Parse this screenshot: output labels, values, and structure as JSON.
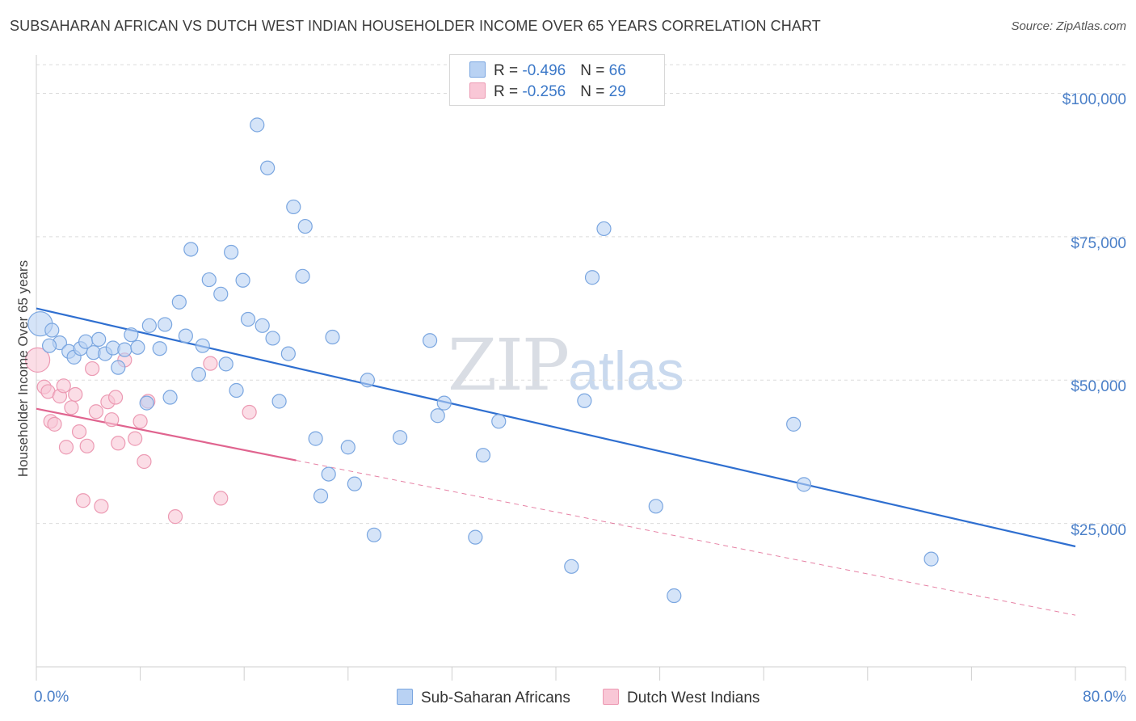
{
  "header": {
    "title": "SUBSAHARAN AFRICAN VS DUTCH WEST INDIAN HOUSEHOLDER INCOME OVER 65 YEARS CORRELATION CHART",
    "source": "Source: ZipAtlas.com"
  },
  "watermark": {
    "zip": "ZIP",
    "atlas": "atlas"
  },
  "legend_top": {
    "rows": [
      {
        "r_label": "R = ",
        "r_value": "-0.496",
        "n_label": "N = ",
        "n_value": "66"
      },
      {
        "r_label": "R = ",
        "r_value": "-0.256",
        "n_label": "N = ",
        "n_value": "29"
      }
    ]
  },
  "legend_bottom": {
    "series1": "Sub-Saharan Africans",
    "series2": "Dutch West Indians"
  },
  "colors": {
    "series1_fill": "#b9d2f3",
    "series1_stroke": "#7aa6e0",
    "series1_line": "#2f6fd0",
    "series2_fill": "#f9c7d6",
    "series2_stroke": "#ec9ab3",
    "series2_line": "#e0648f",
    "grid": "#dcdcdc",
    "axis_text": "#4a7fc8"
  },
  "chart_data": {
    "type": "scatter",
    "title": "SUBSAHARAN AFRICAN VS DUTCH WEST INDIAN HOUSEHOLDER INCOME OVER 65 YEARS CORRELATION CHART",
    "xlabel": "",
    "ylabel": "Householder Income Over 65 years",
    "xlim": [
      0,
      80
    ],
    "ylim": [
      0,
      105000
    ],
    "x_tick_labels": [
      "0.0%",
      "80.0%"
    ],
    "y_ticks": [
      {
        "value": 25000,
        "label": "$25,000"
      },
      {
        "value": 50000,
        "label": "$50,000"
      },
      {
        "value": 75000,
        "label": "$75,000"
      },
      {
        "value": 100000,
        "label": "$100,000"
      }
    ],
    "series": [
      {
        "name": "Sub-Saharan Africans",
        "R": -0.496,
        "N": 66,
        "trend": {
          "x": [
            0,
            80
          ],
          "y": [
            62500,
            21000
          ]
        },
        "points": [
          {
            "x": 0.3,
            "y": 59800,
            "big": true
          },
          {
            "x": 1.2,
            "y": 58700
          },
          {
            "x": 1.8,
            "y": 56500
          },
          {
            "x": 2.5,
            "y": 55000
          },
          {
            "x": 2.9,
            "y": 54000
          },
          {
            "x": 3.4,
            "y": 55500
          },
          {
            "x": 3.8,
            "y": 56700
          },
          {
            "x": 4.4,
            "y": 54800
          },
          {
            "x": 4.8,
            "y": 57100
          },
          {
            "x": 5.3,
            "y": 54600
          },
          {
            "x": 5.9,
            "y": 55600
          },
          {
            "x": 6.3,
            "y": 52200
          },
          {
            "x": 6.8,
            "y": 55300
          },
          {
            "x": 7.3,
            "y": 57900
          },
          {
            "x": 7.8,
            "y": 55700
          },
          {
            "x": 8.5,
            "y": 46000
          },
          {
            "x": 8.7,
            "y": 59500
          },
          {
            "x": 9.5,
            "y": 55500
          },
          {
            "x": 9.9,
            "y": 59700
          },
          {
            "x": 10.3,
            "y": 47000
          },
          {
            "x": 11.0,
            "y": 63600
          },
          {
            "x": 11.5,
            "y": 57700
          },
          {
            "x": 11.9,
            "y": 72800
          },
          {
            "x": 12.5,
            "y": 51000
          },
          {
            "x": 12.8,
            "y": 56000
          },
          {
            "x": 13.3,
            "y": 67500
          },
          {
            "x": 14.2,
            "y": 65000
          },
          {
            "x": 14.6,
            "y": 52800
          },
          {
            "x": 15.0,
            "y": 72300
          },
          {
            "x": 15.4,
            "y": 48200
          },
          {
            "x": 15.9,
            "y": 67400
          },
          {
            "x": 16.3,
            "y": 60600
          },
          {
            "x": 17.0,
            "y": 94500
          },
          {
            "x": 17.4,
            "y": 59500
          },
          {
            "x": 17.8,
            "y": 87000
          },
          {
            "x": 18.2,
            "y": 57300
          },
          {
            "x": 18.7,
            "y": 46300
          },
          {
            "x": 19.4,
            "y": 54600
          },
          {
            "x": 19.8,
            "y": 80200
          },
          {
            "x": 20.5,
            "y": 68100
          },
          {
            "x": 20.7,
            "y": 76800
          },
          {
            "x": 21.5,
            "y": 39800
          },
          {
            "x": 21.9,
            "y": 29800
          },
          {
            "x": 22.5,
            "y": 33600
          },
          {
            "x": 22.8,
            "y": 57500
          },
          {
            "x": 24.0,
            "y": 38300
          },
          {
            "x": 24.5,
            "y": 31900
          },
          {
            "x": 25.5,
            "y": 50000
          },
          {
            "x": 26.0,
            "y": 23000
          },
          {
            "x": 28.0,
            "y": 40000
          },
          {
            "x": 30.3,
            "y": 56900
          },
          {
            "x": 30.9,
            "y": 43800
          },
          {
            "x": 31.4,
            "y": 46000
          },
          {
            "x": 33.8,
            "y": 22600
          },
          {
            "x": 34.4,
            "y": 36900
          },
          {
            "x": 35.6,
            "y": 42800
          },
          {
            "x": 41.2,
            "y": 17500
          },
          {
            "x": 42.2,
            "y": 46400
          },
          {
            "x": 42.8,
            "y": 67900
          },
          {
            "x": 43.7,
            "y": 76400
          },
          {
            "x": 47.7,
            "y": 28000
          },
          {
            "x": 49.1,
            "y": 12400
          },
          {
            "x": 58.3,
            "y": 42300
          },
          {
            "x": 59.1,
            "y": 31800
          },
          {
            "x": 68.9,
            "y": 18800
          },
          {
            "x": 1.0,
            "y": 56000
          }
        ]
      },
      {
        "name": "Dutch West Indians",
        "R": -0.256,
        "N": 29,
        "trend": {
          "x": [
            0,
            20
          ],
          "y": [
            45000,
            36000
          ]
        },
        "trend_ext": {
          "x": [
            20,
            80
          ],
          "y": [
            36000,
            9000
          ]
        },
        "points": [
          {
            "x": 0.1,
            "y": 53500,
            "big": true
          },
          {
            "x": 0.6,
            "y": 48800
          },
          {
            "x": 0.9,
            "y": 48000
          },
          {
            "x": 1.1,
            "y": 42800
          },
          {
            "x": 1.4,
            "y": 42300
          },
          {
            "x": 1.8,
            "y": 47200
          },
          {
            "x": 2.1,
            "y": 49000
          },
          {
            "x": 2.3,
            "y": 38300
          },
          {
            "x": 2.7,
            "y": 45200
          },
          {
            "x": 3.0,
            "y": 47500
          },
          {
            "x": 3.3,
            "y": 41000
          },
          {
            "x": 3.6,
            "y": 29000
          },
          {
            "x": 3.9,
            "y": 38500
          },
          {
            "x": 4.3,
            "y": 52000
          },
          {
            "x": 4.6,
            "y": 44500
          },
          {
            "x": 5.0,
            "y": 28000
          },
          {
            "x": 5.5,
            "y": 46200
          },
          {
            "x": 5.8,
            "y": 43100
          },
          {
            "x": 6.1,
            "y": 47000
          },
          {
            "x": 6.3,
            "y": 39000
          },
          {
            "x": 6.8,
            "y": 53500
          },
          {
            "x": 7.6,
            "y": 39800
          },
          {
            "x": 8.0,
            "y": 42800
          },
          {
            "x": 8.3,
            "y": 35800
          },
          {
            "x": 8.6,
            "y": 46300
          },
          {
            "x": 10.7,
            "y": 26200
          },
          {
            "x": 13.4,
            "y": 52900
          },
          {
            "x": 14.2,
            "y": 29400
          },
          {
            "x": 16.4,
            "y": 44400
          }
        ]
      }
    ]
  }
}
